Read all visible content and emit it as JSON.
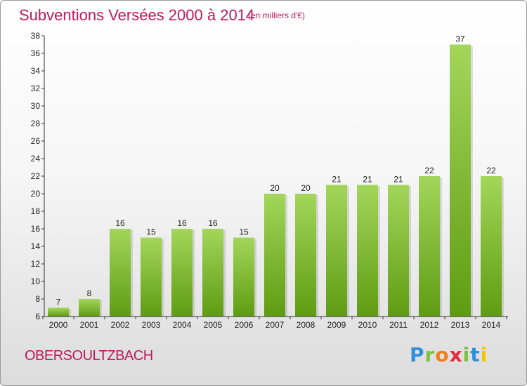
{
  "header": {
    "title": "Subventions Versées 2000 à 2014",
    "subtitle": "(en milliers d'€)"
  },
  "footer": {
    "commune": "OBERSOULTZBACH",
    "logo_letters": [
      "P",
      "r",
      "o",
      "x",
      "i",
      "t",
      "i"
    ],
    "logo_colors": [
      "#2f8fd8",
      "#7dc142",
      "#f07f1b",
      "#e32b3a",
      "#7dc142",
      "#2f8fd8",
      "#f2c500"
    ]
  },
  "colors": {
    "bar_top": "#a3d65a",
    "bar_bottom": "#5f9c12",
    "title": "#c0185a"
  },
  "chart_data": {
    "type": "bar",
    "title": "Subventions Versées 2000 à 2014",
    "subtitle": "(en milliers d'€)",
    "categories": [
      "2000",
      "2001",
      "2002",
      "2003",
      "2004",
      "2005",
      "2006",
      "2007",
      "2008",
      "2009",
      "2010",
      "2011",
      "2012",
      "2013",
      "2014"
    ],
    "values": [
      7,
      8,
      16,
      15,
      16,
      16,
      15,
      20,
      20,
      21,
      21,
      21,
      22,
      37,
      22
    ],
    "ylim": [
      6,
      38
    ],
    "yticks": [
      6,
      8,
      10,
      12,
      14,
      16,
      18,
      20,
      22,
      24,
      26,
      28,
      30,
      32,
      34,
      36,
      38
    ],
    "grid": false,
    "legend": "none"
  }
}
